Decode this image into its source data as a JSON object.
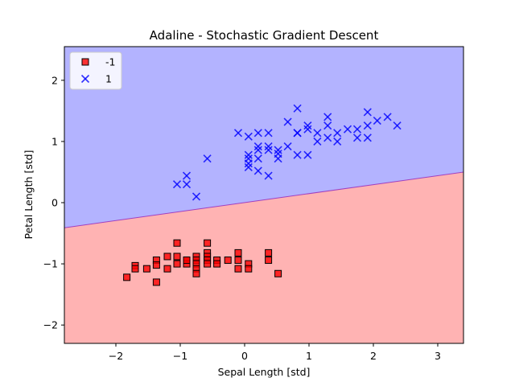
{
  "chart_data": {
    "type": "scatter",
    "title": "Adaline - Stochastic Gradient Descent",
    "xlabel": "Sepal Length [std]",
    "ylabel": "Petal Length [std]",
    "xlim": [
      -2.8,
      3.4
    ],
    "ylim": [
      -2.3,
      2.55
    ],
    "xticks": [
      -2,
      -1,
      0,
      1,
      2,
      3
    ],
    "yticks": [
      -2,
      -1,
      0,
      1,
      2
    ],
    "grid": false,
    "legend_position": "top-left",
    "decision_boundary": {
      "x": [
        -2.8,
        3.4
      ],
      "y": [
        -0.41,
        0.5
      ]
    },
    "regions": [
      {
        "class": "-1",
        "side": "below",
        "color": "#ffb3b3"
      },
      {
        "class": "1",
        "side": "above",
        "color": "#b3b3ff"
      }
    ],
    "series": [
      {
        "name": "-1",
        "marker": "square",
        "color": "#ff0000",
        "points": [
          [
            -1.83,
            -1.22
          ],
          [
            -1.7,
            -1.03
          ],
          [
            -1.7,
            -1.08
          ],
          [
            -1.52,
            -1.08
          ],
          [
            -1.37,
            -0.94
          ],
          [
            -1.37,
            -1.02
          ],
          [
            -1.37,
            -1.3
          ],
          [
            -1.2,
            -0.88
          ],
          [
            -1.2,
            -1.08
          ],
          [
            -1.05,
            -0.66
          ],
          [
            -1.05,
            -0.88
          ],
          [
            -1.05,
            -1.0
          ],
          [
            -0.9,
            -0.94
          ],
          [
            -0.9,
            -1.0
          ],
          [
            -0.9,
            -0.94
          ],
          [
            -0.75,
            -0.88
          ],
          [
            -0.75,
            -0.94
          ],
          [
            -0.75,
            -1.0
          ],
          [
            -0.75,
            -1.08
          ],
          [
            -0.75,
            -1.16
          ],
          [
            -0.58,
            -0.66
          ],
          [
            -0.58,
            -0.82
          ],
          [
            -0.58,
            -0.88
          ],
          [
            -0.58,
            -0.94
          ],
          [
            -0.58,
            -1.0
          ],
          [
            -0.43,
            -0.94
          ],
          [
            -0.43,
            -1.0
          ],
          [
            -0.26,
            -0.94
          ],
          [
            -0.1,
            -0.82
          ],
          [
            -0.1,
            -0.94
          ],
          [
            -0.1,
            -1.08
          ],
          [
            0.06,
            -1.0
          ],
          [
            0.06,
            -1.08
          ],
          [
            0.37,
            -0.82
          ],
          [
            0.37,
            -0.94
          ],
          [
            0.52,
            -1.16
          ]
        ]
      },
      {
        "name": "1",
        "marker": "x",
        "color": "#0000ff",
        "points": [
          [
            -1.05,
            0.3
          ],
          [
            -0.9,
            0.3
          ],
          [
            -0.9,
            0.44
          ],
          [
            -0.75,
            0.1
          ],
          [
            -0.58,
            0.72
          ],
          [
            -0.1,
            1.14
          ],
          [
            0.06,
            0.58
          ],
          [
            0.06,
            0.64
          ],
          [
            0.06,
            0.72
          ],
          [
            0.06,
            0.78
          ],
          [
            0.06,
            1.08
          ],
          [
            0.21,
            0.52
          ],
          [
            0.21,
            0.72
          ],
          [
            0.21,
            0.86
          ],
          [
            0.21,
            0.92
          ],
          [
            0.21,
            1.14
          ],
          [
            0.37,
            0.44
          ],
          [
            0.37,
            0.86
          ],
          [
            0.37,
            0.92
          ],
          [
            0.37,
            1.14
          ],
          [
            0.52,
            0.72
          ],
          [
            0.52,
            0.8
          ],
          [
            0.52,
            0.86
          ],
          [
            0.67,
            0.92
          ],
          [
            0.67,
            1.32
          ],
          [
            0.82,
            0.78
          ],
          [
            0.82,
            1.14
          ],
          [
            0.82,
            1.14
          ],
          [
            0.82,
            1.54
          ],
          [
            0.98,
            0.78
          ],
          [
            0.98,
            1.2
          ],
          [
            0.98,
            1.26
          ],
          [
            1.13,
            1.0
          ],
          [
            1.13,
            1.14
          ],
          [
            1.29,
            1.06
          ],
          [
            1.29,
            1.26
          ],
          [
            1.29,
            1.4
          ],
          [
            1.44,
            1.0
          ],
          [
            1.44,
            1.14
          ],
          [
            1.6,
            1.2
          ],
          [
            1.75,
            1.06
          ],
          [
            1.75,
            1.2
          ],
          [
            1.91,
            1.06
          ],
          [
            1.91,
            1.26
          ],
          [
            1.91,
            1.48
          ],
          [
            2.06,
            1.34
          ],
          [
            2.22,
            1.4
          ],
          [
            2.37,
            1.26
          ]
        ]
      }
    ]
  }
}
